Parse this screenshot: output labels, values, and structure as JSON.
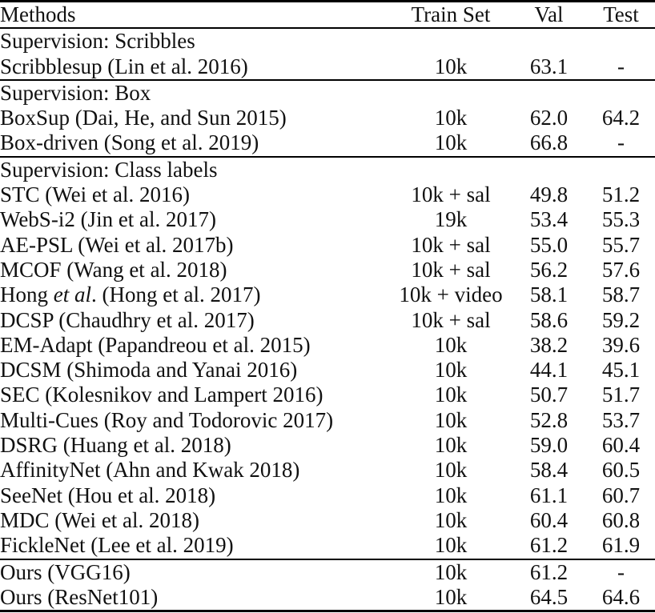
{
  "table": {
    "columns": [
      {
        "key": "method",
        "label": "Methods",
        "align": "left"
      },
      {
        "key": "train_set",
        "label": "Train Set",
        "align": "center"
      },
      {
        "key": "val",
        "label": "Val",
        "align": "center"
      },
      {
        "key": "test",
        "label": "Test",
        "align": "center"
      }
    ],
    "sections": [
      {
        "header": "Supervision: Scribbles",
        "rows": [
          {
            "method": "Scribblesup (Lin et al. 2016)",
            "train_set": "10k",
            "val": "63.1",
            "test": "-"
          }
        ]
      },
      {
        "header": "Supervision: Box",
        "rows": [
          {
            "method": "BoxSup (Dai, He, and Sun 2015)",
            "train_set": "10k",
            "val": "62.0",
            "test": "64.2"
          },
          {
            "method": "Box-driven (Song et al. 2019)",
            "train_set": "10k",
            "val": "66.8",
            "test": "-"
          }
        ]
      },
      {
        "header": "Supervision: Class labels",
        "rows": [
          {
            "method": "STC (Wei et al. 2016)",
            "train_set": "10k + sal",
            "val": "49.8",
            "test": "51.2"
          },
          {
            "method": "WebS-i2 (Jin et al. 2017)",
            "train_set": "19k",
            "val": "53.4",
            "test": "55.3"
          },
          {
            "method": "AE-PSL (Wei et al. 2017b)",
            "train_set": "10k + sal",
            "val": "55.0",
            "test": "55.7"
          },
          {
            "method": "MCOF (Wang et al. 2018)",
            "train_set": "10k + sal",
            "val": "56.2",
            "test": "57.6"
          },
          {
            "method": [
              {
                "text": "Hong "
              },
              {
                "text": "et al",
                "italic": true
              },
              {
                "text": ". (Hong et al. 2017)"
              }
            ],
            "train_set": "10k + video",
            "val": "58.1",
            "test": "58.7"
          },
          {
            "method": "DCSP (Chaudhry et al. 2017)",
            "train_set": "10k + sal",
            "val": "58.6",
            "test": "59.2"
          },
          {
            "method": "EM-Adapt (Papandreou et al. 2015)",
            "train_set": "10k",
            "val": "38.2",
            "test": "39.6"
          },
          {
            "method": "DCSM (Shimoda and Yanai 2016)",
            "train_set": "10k",
            "val": "44.1",
            "test": "45.1"
          },
          {
            "method": "SEC (Kolesnikov and Lampert 2016)",
            "train_set": "10k",
            "val": "50.7",
            "test": "51.7"
          },
          {
            "method": "Multi-Cues (Roy and Todorovic 2017)",
            "train_set": "10k",
            "val": "52.8",
            "test": "53.7"
          },
          {
            "method": "DSRG (Huang et al. 2018)",
            "train_set": "10k",
            "val": "59.0",
            "test": "60.4"
          },
          {
            "method": "AffinityNet (Ahn and Kwak 2018)",
            "train_set": "10k",
            "val": "58.4",
            "test": "60.5"
          },
          {
            "method": "SeeNet (Hou et al. 2018)",
            "train_set": "10k",
            "val": "61.1",
            "test": "60.7"
          },
          {
            "method": "MDC (Wei et al. 2018)",
            "train_set": "10k",
            "val": "60.4",
            "test": "60.8"
          },
          {
            "method": "FickleNet (Lee et al. 2019)",
            "train_set": "10k",
            "val": "61.2",
            "test": "61.9"
          }
        ]
      },
      {
        "header": null,
        "rows": [
          {
            "method": "Ours (VGG16)",
            "train_set": "10k",
            "val": "61.2",
            "test": "-"
          },
          {
            "method": "Ours (ResNet101)",
            "train_set": "10k",
            "val": "64.5",
            "test": "64.6",
            "bold": [
              "val",
              "test"
            ]
          }
        ]
      }
    ]
  },
  "colors": {
    "text": "#111111",
    "rule": "#000000",
    "background": "#ffffff"
  }
}
